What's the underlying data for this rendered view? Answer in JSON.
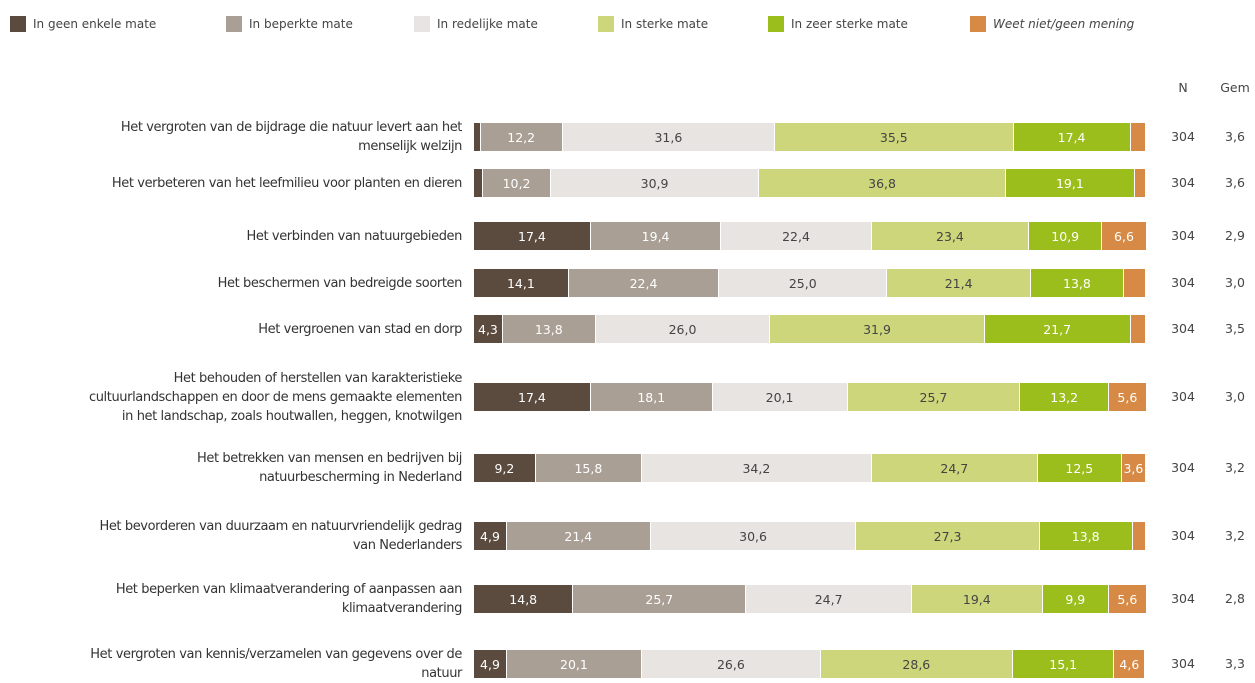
{
  "chart_data": {
    "type": "stacked-bar-horizontal",
    "xlim": [
      0,
      100
    ],
    "categories": [
      [
        "Het vergroten van de bijdrage die natuur levert aan het",
        "menselijk welzijn"
      ],
      [
        "Het verbeteren van het leefmilieu voor planten en dieren"
      ],
      [
        "Het verbinden van natuurgebieden"
      ],
      [
        "Het beschermen van bedreigde soorten"
      ],
      [
        "Het vergroenen van stad en dorp"
      ],
      [
        "Het behouden of herstellen van karakteristieke",
        "cultuurlandschappen en door de mens gemaakte elementen",
        "in het landschap, zoals houtwallen, heggen, knotwilgen"
      ],
      [
        "Het betrekken van mensen en bedrijven bij",
        "natuurbescherming in Nederland"
      ],
      [
        "Het bevorderen van duurzaam en natuurvriendelijk gedrag",
        "van Nederlanders"
      ],
      [
        "Het beperken van klimaatverandering of aanpassen aan",
        "klimaatverandering"
      ],
      [
        "Het vergroten van kennis/verzamelen van gegevens over de",
        "natuur"
      ]
    ],
    "series": [
      {
        "name": "In geen enkele mate",
        "color": "#5b4b3f",
        "label_color": "#ffffff",
        "values": [
          1.0,
          1.3,
          17.4,
          14.1,
          4.3,
          17.4,
          9.2,
          4.9,
          14.8,
          4.9
        ],
        "value_labels": [
          null,
          null,
          "17,4",
          "14,1",
          "4,3",
          "17,4",
          "9,2",
          "4,9",
          "14,8",
          "4,9"
        ]
      },
      {
        "name": "In beperkte mate",
        "color": "#a99f95",
        "label_color": "#ffffff",
        "values": [
          12.2,
          10.2,
          19.4,
          22.4,
          13.8,
          18.1,
          15.8,
          21.4,
          25.7,
          20.1
        ],
        "value_labels": [
          "12,2",
          "10,2",
          "19,4",
          "22,4",
          "13,8",
          "18,1",
          "15,8",
          "21,4",
          "25,7",
          "20,1"
        ]
      },
      {
        "name": "In redelijke mate",
        "color": "#e7e4e1",
        "label_color": "#444444",
        "values": [
          31.6,
          30.9,
          22.4,
          25.0,
          26.0,
          20.1,
          34.2,
          30.6,
          24.7,
          26.6
        ],
        "value_labels": [
          "31,6",
          "30,9",
          "22,4",
          "25,0",
          "26,0",
          "20,1",
          "34,2",
          "30,6",
          "24,7",
          "26,6"
        ]
      },
      {
        "name": "In sterke mate",
        "color": "#cdd67b",
        "label_color": "#444444",
        "values": [
          35.5,
          36.8,
          23.4,
          21.4,
          31.9,
          25.7,
          24.7,
          27.3,
          19.4,
          28.6
        ],
        "value_labels": [
          "35,5",
          "36,8",
          "23,4",
          "21,4",
          "31,9",
          "25,7",
          "24,7",
          "27,3",
          "19,4",
          "28,6"
        ]
      },
      {
        "name": "In zeer sterke mate",
        "color": "#9cbe1d",
        "label_color": "#ffffff",
        "values": [
          17.4,
          19.1,
          10.9,
          13.8,
          21.7,
          13.2,
          12.5,
          13.8,
          9.9,
          15.1
        ],
        "value_labels": [
          "17,4",
          "19,1",
          "10,9",
          "13,8",
          "21,7",
          "13,2",
          "12,5",
          "13,8",
          "9,9",
          "15,1"
        ]
      },
      {
        "name": "Weet niet/geen mening",
        "color": "#d68a46",
        "label_color": "#ffffff",
        "italic": true,
        "values": [
          2.3,
          1.7,
          6.6,
          3.3,
          2.3,
          5.6,
          3.6,
          2.0,
          5.6,
          4.6
        ],
        "value_labels": [
          null,
          null,
          "6,6",
          null,
          null,
          "5,6",
          "3,6",
          null,
          "5,6",
          "4,6"
        ]
      }
    ],
    "n": {
      "label": "N",
      "values": [
        304,
        304,
        304,
        304,
        304,
        304,
        304,
        304,
        304,
        304
      ]
    },
    "gem": {
      "label": "Gem",
      "values": [
        3.6,
        3.6,
        2.9,
        3.0,
        3.5,
        3.0,
        3.2,
        3.2,
        2.8,
        3.3
      ],
      "value_labels": [
        "3,6",
        "3,6",
        "2,9",
        "3,0",
        "3,5",
        "3,0",
        "3,2",
        "3,2",
        "2,8",
        "3,3"
      ]
    }
  }
}
